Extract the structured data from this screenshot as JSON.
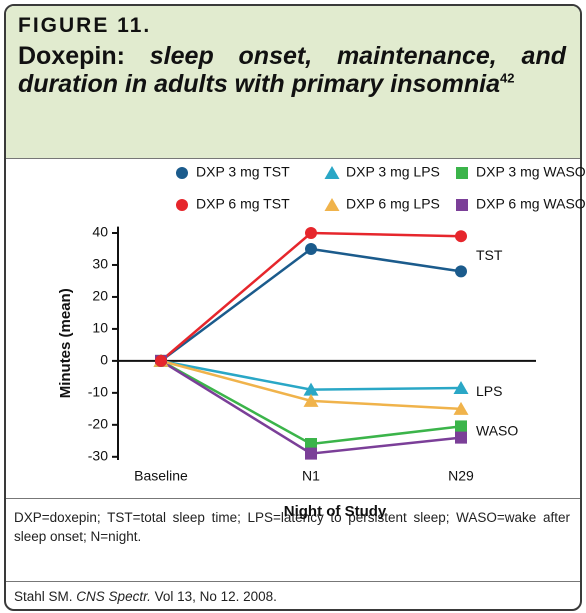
{
  "header": {
    "figure_label": "FIGURE 11.",
    "title": "Doxepin:",
    "title_italic": "sleep onset, maintenance, and duration in adults with primary insomnia",
    "reference": "42"
  },
  "chart_data": {
    "type": "line",
    "categories": [
      "Baseline",
      "N1",
      "N29"
    ],
    "ylabel": "Minutes (mean)",
    "xlabel": "Night of Study",
    "ylim": [
      -31,
      42
    ],
    "yticks": [
      -30,
      -20,
      -10,
      0,
      10,
      20,
      30,
      40
    ],
    "series": [
      {
        "name": "DXP 3 mg TST",
        "color": "#1b5b8c",
        "marker": "circle",
        "values": [
          0,
          35,
          28
        ]
      },
      {
        "name": "DXP 3 mg LPS",
        "color": "#2aa7c6",
        "marker": "triangle",
        "values": [
          0,
          -9,
          -8.5
        ]
      },
      {
        "name": "DXP 3 mg WASO",
        "color": "#3bb44a",
        "marker": "square",
        "values": [
          0,
          -26,
          -20.5
        ]
      },
      {
        "name": "DXP 6 mg TST",
        "color": "#e6262c",
        "marker": "circle",
        "values": [
          0,
          40,
          39
        ]
      },
      {
        "name": "DXP 6 mg LPS",
        "color": "#f0b34b",
        "marker": "triangle",
        "values": [
          0,
          -12.5,
          -15
        ]
      },
      {
        "name": "DXP 6 mg WASO",
        "color": "#7b3f98",
        "marker": "square",
        "values": [
          0,
          -29,
          -24
        ]
      }
    ],
    "annotations": [
      "TST",
      "LPS",
      "WASO"
    ]
  },
  "footnote": "DXP=doxepin; TST=total sleep time; LPS=latency to persistent sleep; WASO=wake after sleep onset; N=night.",
  "citation": {
    "author": "Stahl SM.",
    "journal": "CNS Spectr.",
    "details": "Vol 13, No 12. 2008."
  }
}
